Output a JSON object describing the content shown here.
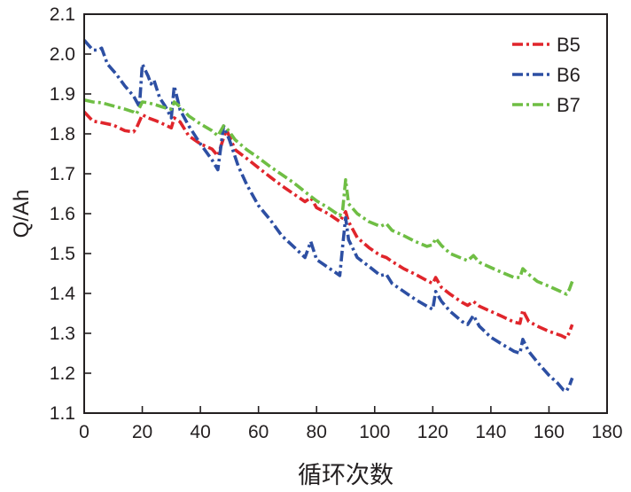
{
  "chart_data": {
    "type": "line",
    "xlabel": "循环次数",
    "ylabel": "Q/Ah",
    "xlim": [
      0,
      180
    ],
    "ylim": [
      1.1,
      2.1
    ],
    "xticks": [
      "0",
      "20",
      "40",
      "60",
      "80",
      "100",
      "120",
      "140",
      "160",
      "180"
    ],
    "yticks": [
      "1.1",
      "1.2",
      "1.3",
      "1.4",
      "1.5",
      "1.6",
      "1.7",
      "1.8",
      "1.9",
      "2.0",
      "2.1"
    ],
    "grid": false,
    "legend": "top-right",
    "series": [
      {
        "name": "B5",
        "color": "#e0252b",
        "points": [
          [
            0,
            1.855
          ],
          [
            3,
            1.832
          ],
          [
            6,
            1.828
          ],
          [
            10,
            1.822
          ],
          [
            14,
            1.808
          ],
          [
            17,
            1.805
          ],
          [
            18,
            1.815
          ],
          [
            20,
            1.848
          ],
          [
            22,
            1.84
          ],
          [
            25,
            1.832
          ],
          [
            28,
            1.822
          ],
          [
            30,
            1.815
          ],
          [
            31,
            1.84
          ],
          [
            33,
            1.83
          ],
          [
            36,
            1.795
          ],
          [
            40,
            1.775
          ],
          [
            44,
            1.762
          ],
          [
            46,
            1.745
          ],
          [
            48,
            1.79
          ],
          [
            49,
            1.81
          ],
          [
            52,
            1.76
          ],
          [
            56,
            1.738
          ],
          [
            60,
            1.715
          ],
          [
            64,
            1.692
          ],
          [
            68,
            1.67
          ],
          [
            72,
            1.65
          ],
          [
            76,
            1.63
          ],
          [
            78,
            1.64
          ],
          [
            80,
            1.615
          ],
          [
            84,
            1.6
          ],
          [
            88,
            1.58
          ],
          [
            90,
            1.605
          ],
          [
            91,
            1.58
          ],
          [
            94,
            1.54
          ],
          [
            98,
            1.515
          ],
          [
            102,
            1.495
          ],
          [
            104,
            1.49
          ],
          [
            106,
            1.48
          ],
          [
            110,
            1.462
          ],
          [
            114,
            1.448
          ],
          [
            118,
            1.432
          ],
          [
            120,
            1.425
          ],
          [
            121,
            1.44
          ],
          [
            123,
            1.415
          ],
          [
            126,
            1.398
          ],
          [
            130,
            1.378
          ],
          [
            132,
            1.37
          ],
          [
            134,
            1.38
          ],
          [
            136,
            1.368
          ],
          [
            140,
            1.355
          ],
          [
            144,
            1.342
          ],
          [
            148,
            1.328
          ],
          [
            150,
            1.325
          ],
          [
            151,
            1.358
          ],
          [
            153,
            1.33
          ],
          [
            156,
            1.318
          ],
          [
            160,
            1.305
          ],
          [
            164,
            1.295
          ],
          [
            166,
            1.288
          ],
          [
            167,
            1.302
          ],
          [
            168,
            1.322
          ]
        ]
      },
      {
        "name": "B6",
        "color": "#2d4fa3",
        "points": [
          [
            0,
            2.035
          ],
          [
            3,
            2.01
          ],
          [
            5,
            2.01
          ],
          [
            6,
            2.015
          ],
          [
            8,
            1.975
          ],
          [
            11,
            1.95
          ],
          [
            14,
            1.92
          ],
          [
            17,
            1.895
          ],
          [
            19,
            1.868
          ],
          [
            20,
            1.975
          ],
          [
            22,
            1.945
          ],
          [
            23,
            1.925
          ],
          [
            24,
            1.935
          ],
          [
            26,
            1.89
          ],
          [
            28,
            1.868
          ],
          [
            30,
            1.84
          ],
          [
            31,
            1.92
          ],
          [
            33,
            1.86
          ],
          [
            36,
            1.82
          ],
          [
            40,
            1.775
          ],
          [
            42,
            1.755
          ],
          [
            44,
            1.735
          ],
          [
            46,
            1.71
          ],
          [
            48,
            1.82
          ],
          [
            50,
            1.785
          ],
          [
            53,
            1.72
          ],
          [
            56,
            1.672
          ],
          [
            60,
            1.62
          ],
          [
            64,
            1.585
          ],
          [
            68,
            1.545
          ],
          [
            72,
            1.518
          ],
          [
            76,
            1.49
          ],
          [
            78,
            1.53
          ],
          [
            80,
            1.485
          ],
          [
            84,
            1.465
          ],
          [
            87,
            1.45
          ],
          [
            88,
            1.445
          ],
          [
            89,
            1.52
          ],
          [
            90,
            1.59
          ],
          [
            91,
            1.535
          ],
          [
            94,
            1.49
          ],
          [
            98,
            1.468
          ],
          [
            102,
            1.445
          ],
          [
            104,
            1.448
          ],
          [
            106,
            1.425
          ],
          [
            110,
            1.405
          ],
          [
            114,
            1.385
          ],
          [
            118,
            1.368
          ],
          [
            120,
            1.36
          ],
          [
            121,
            1.405
          ],
          [
            123,
            1.38
          ],
          [
            126,
            1.355
          ],
          [
            130,
            1.33
          ],
          [
            132,
            1.322
          ],
          [
            134,
            1.345
          ],
          [
            136,
            1.318
          ],
          [
            140,
            1.29
          ],
          [
            144,
            1.272
          ],
          [
            148,
            1.255
          ],
          [
            150,
            1.25
          ],
          [
            151,
            1.285
          ],
          [
            153,
            1.255
          ],
          [
            156,
            1.228
          ],
          [
            160,
            1.195
          ],
          [
            163,
            1.175
          ],
          [
            165,
            1.158
          ],
          [
            166,
            1.155
          ],
          [
            167,
            1.168
          ],
          [
            168,
            1.188
          ]
        ]
      },
      {
        "name": "B7",
        "color": "#6fbe44",
        "points": [
          [
            0,
            1.885
          ],
          [
            3,
            1.88
          ],
          [
            6,
            1.878
          ],
          [
            10,
            1.87
          ],
          [
            14,
            1.862
          ],
          [
            17,
            1.855
          ],
          [
            18,
            1.85
          ],
          [
            20,
            1.88
          ],
          [
            22,
            1.878
          ],
          [
            25,
            1.872
          ],
          [
            28,
            1.865
          ],
          [
            30,
            1.862
          ],
          [
            31,
            1.88
          ],
          [
            33,
            1.868
          ],
          [
            36,
            1.845
          ],
          [
            40,
            1.825
          ],
          [
            44,
            1.808
          ],
          [
            46,
            1.795
          ],
          [
            48,
            1.82
          ],
          [
            49,
            1.815
          ],
          [
            52,
            1.785
          ],
          [
            56,
            1.76
          ],
          [
            60,
            1.74
          ],
          [
            64,
            1.718
          ],
          [
            68,
            1.698
          ],
          [
            72,
            1.678
          ],
          [
            76,
            1.655
          ],
          [
            80,
            1.632
          ],
          [
            84,
            1.615
          ],
          [
            88,
            1.595
          ],
          [
            89,
            1.61
          ],
          [
            90,
            1.685
          ],
          [
            91,
            1.625
          ],
          [
            94,
            1.6
          ],
          [
            98,
            1.58
          ],
          [
            102,
            1.568
          ],
          [
            104,
            1.575
          ],
          [
            106,
            1.558
          ],
          [
            110,
            1.545
          ],
          [
            114,
            1.53
          ],
          [
            118,
            1.518
          ],
          [
            120,
            1.522
          ],
          [
            121,
            1.538
          ],
          [
            123,
            1.52
          ],
          [
            126,
            1.5
          ],
          [
            130,
            1.488
          ],
          [
            132,
            1.482
          ],
          [
            134,
            1.495
          ],
          [
            136,
            1.478
          ],
          [
            140,
            1.465
          ],
          [
            144,
            1.452
          ],
          [
            148,
            1.44
          ],
          [
            150,
            1.44
          ],
          [
            151,
            1.462
          ],
          [
            153,
            1.448
          ],
          [
            156,
            1.43
          ],
          [
            160,
            1.418
          ],
          [
            164,
            1.405
          ],
          [
            166,
            1.398
          ],
          [
            167,
            1.41
          ],
          [
            168,
            1.43
          ]
        ]
      }
    ]
  }
}
